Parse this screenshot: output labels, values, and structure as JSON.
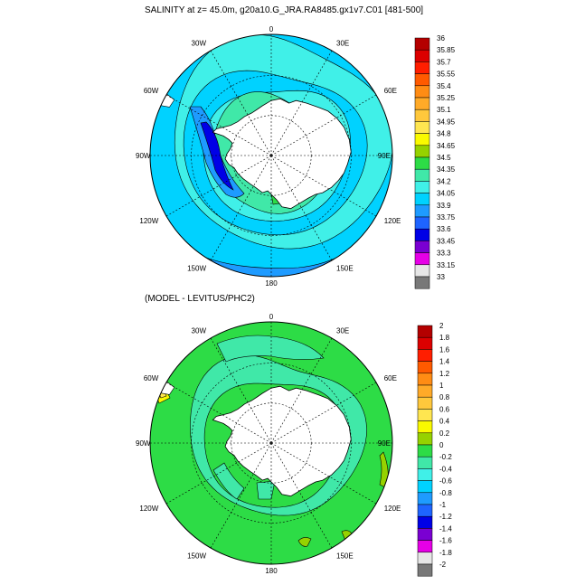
{
  "title": "SALINITY at z=  45.0m, g20a10.G_JRA.RA8485.gx1v7.C01 [481-500]",
  "subtitle": "(MODEL - LEVITUS/PHC2)",
  "longitude_labels": [
    "0",
    "30E",
    "60E",
    "90E",
    "120E",
    "150E",
    "180",
    "150W",
    "120W",
    "90W",
    "60W",
    "30W"
  ],
  "top_map": {
    "colorbar": {
      "labels": [
        "36",
        "35.85",
        "35.7",
        "35.55",
        "35.4",
        "35.25",
        "35.1",
        "34.95",
        "34.8",
        "34.65",
        "34.5",
        "34.35",
        "34.2",
        "34.05",
        "33.9",
        "33.75",
        "33.6",
        "33.45",
        "33.3",
        "33.15",
        "33"
      ],
      "colors": [
        "#b40000",
        "#dc0000",
        "#ff1e00",
        "#ff5a00",
        "#ff8c14",
        "#ffaa28",
        "#ffc83c",
        "#ffe650",
        "#fafa00",
        "#96d200",
        "#2ddc46",
        "#40e8a8",
        "#40f0e8",
        "#00d2ff",
        "#1e9bff",
        "#1e64ff",
        "#0000e6",
        "#7a00d2",
        "#e600e6",
        "#e6e6e6",
        "#787878"
      ]
    }
  },
  "bottom_map": {
    "colorbar": {
      "labels": [
        "2",
        "1.8",
        "1.6",
        "1.4",
        "1.2",
        "1",
        "0.8",
        "0.6",
        "0.4",
        "0.2",
        "0",
        "-0.2",
        "-0.4",
        "-0.6",
        "-0.8",
        "-1",
        "-1.2",
        "-1.4",
        "-1.6",
        "-1.8",
        "-2"
      ],
      "colors": [
        "#b40000",
        "#dc0000",
        "#ff1e00",
        "#ff5a00",
        "#ff8c14",
        "#ffaa28",
        "#ffc83c",
        "#ffe650",
        "#fafa00",
        "#96d200",
        "#2ddc46",
        "#40e8a8",
        "#40f0e8",
        "#00d2ff",
        "#1e9bff",
        "#1e64ff",
        "#0000e6",
        "#7a00d2",
        "#e600e6",
        "#e6e6e6",
        "#787878"
      ]
    }
  },
  "colors": {
    "land": "#ffffff",
    "outline": "#000000"
  }
}
